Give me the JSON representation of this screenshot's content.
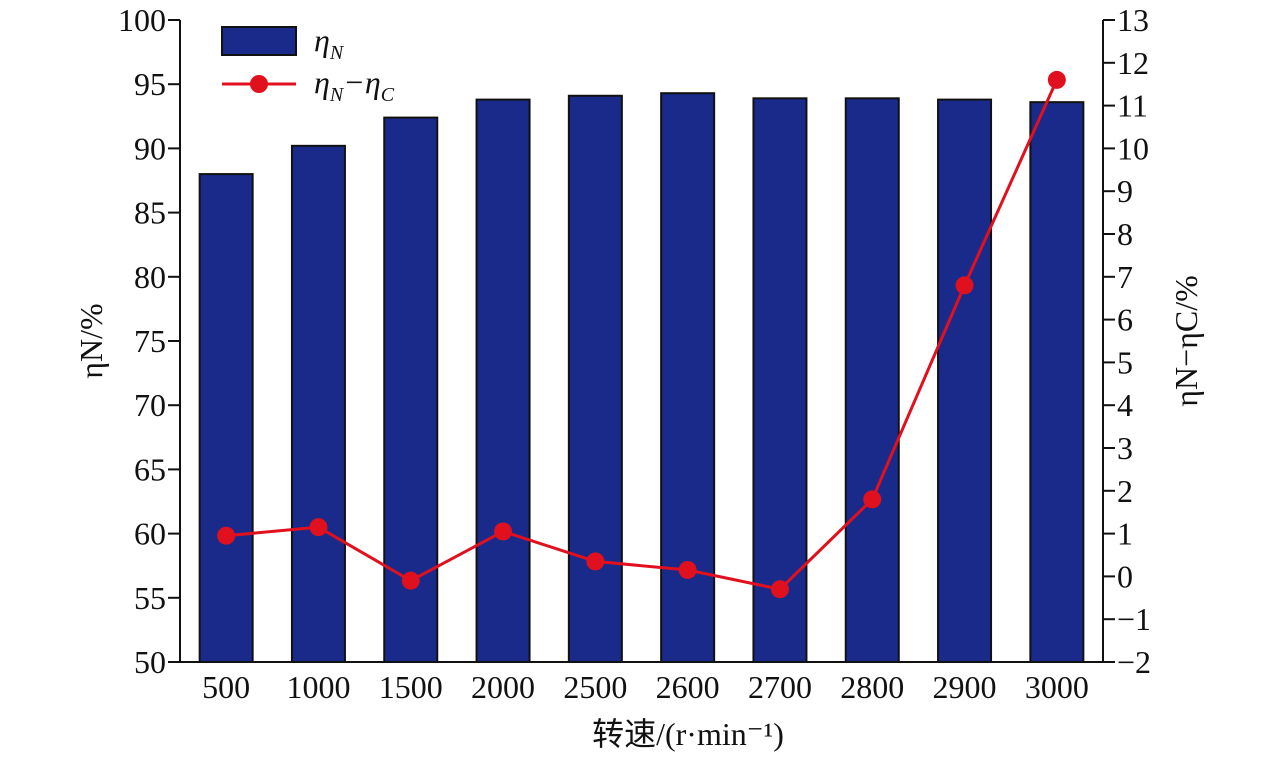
{
  "chart_data": {
    "type": "bar",
    "categories": [
      "500",
      "1000",
      "1500",
      "2000",
      "2500",
      "2600",
      "2700",
      "2800",
      "2900",
      "3000"
    ],
    "series": [
      {
        "name": "ηN",
        "type": "bar",
        "axis": "left",
        "values": [
          88.0,
          90.2,
          92.4,
          93.8,
          94.1,
          94.3,
          93.9,
          93.9,
          93.8,
          93.6
        ],
        "color": "#1a2a8a"
      },
      {
        "name": "ηN−ηC",
        "type": "line",
        "axis": "right",
        "values": [
          0.95,
          1.15,
          -0.1,
          1.05,
          0.35,
          0.15,
          -0.3,
          1.8,
          6.8,
          11.6
        ],
        "color": "#e0101e"
      }
    ],
    "xlabel": "转速/(r·min⁻¹)",
    "ylabel": "ηN/%",
    "y2label": "ηN−ηC/%",
    "ylim": [
      50,
      100
    ],
    "y2lim": [
      -2,
      13
    ],
    "yticks": [
      "50",
      "55",
      "60",
      "65",
      "70",
      "75",
      "80",
      "85",
      "90",
      "95",
      "100"
    ],
    "y2ticks": [
      "−2",
      "−1",
      "0",
      "1",
      "2",
      "3",
      "4",
      "5",
      "6",
      "7",
      "8",
      "9",
      "10",
      "11",
      "12",
      "13"
    ],
    "legend": {
      "placement": "top-left",
      "entries": [
        {
          "main": "η",
          "sub": "N"
        },
        {
          "main": "η",
          "sub": "N",
          "sep": "−η",
          "sub2": "C"
        }
      ]
    },
    "grid": false
  }
}
